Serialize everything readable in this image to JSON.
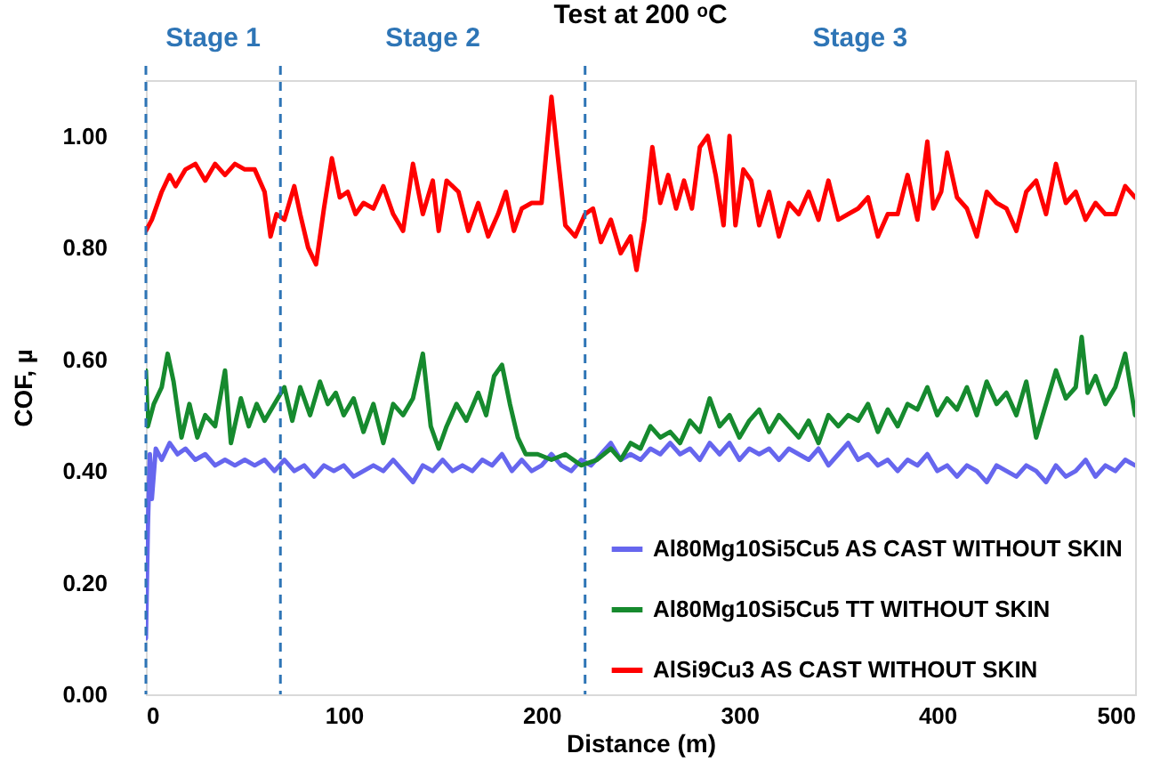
{
  "chart_data": {
    "type": "line",
    "title": "Test at 200 ᵒC",
    "xlabel": "Distance (m)",
    "ylabel": "COF, µ",
    "xlim": [
      0,
      500
    ],
    "xticks": [
      0,
      100,
      200,
      300,
      400,
      500
    ],
    "ylim": [
      0,
      1.1
    ],
    "yticks": [
      {
        "value": 0,
        "label": "0.00"
      },
      {
        "value": 0.2,
        "label": "0.20"
      },
      {
        "value": 0.4,
        "label": "0.40"
      },
      {
        "value": 0.6,
        "label": "0.60"
      },
      {
        "value": 0.8,
        "label": "0.80"
      },
      {
        "value": 1,
        "label": "1.00"
      }
    ],
    "grid": false,
    "legend": "bottom right",
    "line_style": "solid",
    "marker": "none",
    "annotations": [
      "Stage 1",
      "Stage 2",
      "Stage 3"
    ],
    "ref_lines": [
      {
        "axis": "x",
        "value": 0,
        "color": "#2e75b6",
        "line_style": "dashed"
      },
      {
        "axis": "x",
        "value": 68,
        "color": "#2e75b6",
        "line_style": "dashed"
      },
      {
        "axis": "x",
        "value": 222,
        "color": "#2e75b6",
        "line_style": "dashed"
      }
    ],
    "series": [
      {
        "name": "Al80Mg10Si5Cu5 AS CAST WITHOUT SKIN",
        "color": "#6666ee",
        "x": [
          0,
          1,
          2,
          3,
          5,
          8,
          12,
          16,
          20,
          25,
          30,
          35,
          40,
          45,
          50,
          55,
          60,
          65,
          70,
          75,
          80,
          85,
          90,
          95,
          100,
          105,
          110,
          115,
          120,
          125,
          130,
          135,
          140,
          145,
          150,
          155,
          160,
          165,
          170,
          175,
          180,
          185,
          190,
          195,
          200,
          205,
          210,
          215,
          220,
          225,
          230,
          235,
          240,
          245,
          250,
          255,
          260,
          265,
          270,
          275,
          280,
          285,
          290,
          295,
          300,
          305,
          310,
          315,
          320,
          325,
          330,
          335,
          340,
          345,
          350,
          355,
          360,
          365,
          370,
          375,
          380,
          385,
          390,
          395,
          400,
          405,
          410,
          415,
          420,
          425,
          430,
          435,
          440,
          445,
          450,
          455,
          460,
          465,
          470,
          475,
          480,
          485,
          490,
          495,
          500
        ],
        "values": [
          0.1,
          0.3,
          0.43,
          0.35,
          0.44,
          0.42,
          0.45,
          0.43,
          0.44,
          0.42,
          0.43,
          0.41,
          0.42,
          0.41,
          0.42,
          0.41,
          0.42,
          0.4,
          0.42,
          0.4,
          0.41,
          0.39,
          0.41,
          0.4,
          0.41,
          0.39,
          0.4,
          0.41,
          0.4,
          0.42,
          0.4,
          0.38,
          0.41,
          0.4,
          0.42,
          0.4,
          0.41,
          0.4,
          0.42,
          0.41,
          0.43,
          0.4,
          0.42,
          0.4,
          0.41,
          0.43,
          0.41,
          0.4,
          0.42,
          0.41,
          0.43,
          0.45,
          0.42,
          0.43,
          0.42,
          0.44,
          0.43,
          0.45,
          0.43,
          0.44,
          0.42,
          0.45,
          0.43,
          0.45,
          0.42,
          0.44,
          0.43,
          0.44,
          0.42,
          0.44,
          0.43,
          0.42,
          0.44,
          0.41,
          0.43,
          0.45,
          0.42,
          0.43,
          0.41,
          0.42,
          0.4,
          0.42,
          0.41,
          0.43,
          0.4,
          0.41,
          0.39,
          0.41,
          0.4,
          0.38,
          0.41,
          0.4,
          0.39,
          0.41,
          0.4,
          0.38,
          0.41,
          0.39,
          0.4,
          0.42,
          0.39,
          0.41,
          0.4,
          0.42,
          0.41
        ]
      },
      {
        "name": "Al80Mg10Si5Cu5 TT WITHOUT SKIN",
        "color": "#168a2e",
        "x": [
          0,
          1,
          4,
          8,
          11,
          14,
          18,
          22,
          26,
          30,
          35,
          40,
          43,
          48,
          52,
          56,
          60,
          65,
          70,
          74,
          78,
          83,
          88,
          92,
          96,
          100,
          105,
          110,
          115,
          120,
          125,
          130,
          135,
          140,
          144,
          148,
          152,
          157,
          162,
          168,
          172,
          176,
          180,
          184,
          188,
          192,
          198,
          205,
          212,
          220,
          228,
          235,
          240,
          245,
          250,
          255,
          260,
          265,
          270,
          275,
          280,
          285,
          290,
          295,
          300,
          305,
          310,
          315,
          320,
          325,
          330,
          335,
          340,
          345,
          350,
          355,
          360,
          365,
          370,
          375,
          380,
          385,
          390,
          395,
          400,
          405,
          410,
          415,
          420,
          425,
          430,
          435,
          440,
          445,
          450,
          455,
          460,
          465,
          470,
          473,
          476,
          480,
          485,
          490,
          495,
          500
        ],
        "values": [
          0.58,
          0.48,
          0.52,
          0.55,
          0.61,
          0.56,
          0.46,
          0.52,
          0.46,
          0.5,
          0.48,
          0.58,
          0.45,
          0.53,
          0.48,
          0.52,
          0.49,
          0.52,
          0.55,
          0.49,
          0.55,
          0.5,
          0.56,
          0.52,
          0.54,
          0.5,
          0.53,
          0.47,
          0.52,
          0.45,
          0.52,
          0.5,
          0.53,
          0.61,
          0.48,
          0.44,
          0.48,
          0.52,
          0.49,
          0.54,
          0.5,
          0.57,
          0.59,
          0.52,
          0.46,
          0.43,
          0.43,
          0.42,
          0.43,
          0.41,
          0.42,
          0.44,
          0.42,
          0.45,
          0.44,
          0.48,
          0.46,
          0.47,
          0.45,
          0.49,
          0.47,
          0.53,
          0.48,
          0.5,
          0.46,
          0.49,
          0.51,
          0.47,
          0.5,
          0.48,
          0.46,
          0.49,
          0.45,
          0.5,
          0.48,
          0.5,
          0.49,
          0.52,
          0.47,
          0.51,
          0.48,
          0.52,
          0.51,
          0.55,
          0.5,
          0.53,
          0.51,
          0.55,
          0.5,
          0.56,
          0.52,
          0.54,
          0.5,
          0.56,
          0.46,
          0.52,
          0.58,
          0.53,
          0.55,
          0.64,
          0.54,
          0.57,
          0.52,
          0.55,
          0.61,
          0.5
        ]
      },
      {
        "name": "AlSi9Cu3 AS CAST WITHOUT SKIN",
        "color": "#ff0000",
        "x": [
          0,
          3,
          8,
          12,
          15,
          20,
          25,
          30,
          35,
          40,
          45,
          50,
          55,
          60,
          63,
          66,
          70,
          75,
          78,
          82,
          86,
          90,
          94,
          98,
          102,
          106,
          110,
          115,
          120,
          125,
          130,
          135,
          140,
          145,
          148,
          152,
          158,
          163,
          168,
          173,
          178,
          182,
          186,
          190,
          195,
          200,
          205,
          208,
          212,
          217,
          222,
          226,
          230,
          235,
          240,
          245,
          248,
          252,
          256,
          260,
          264,
          268,
          272,
          276,
          280,
          284,
          288,
          292,
          295,
          298,
          302,
          306,
          310,
          315,
          320,
          325,
          330,
          335,
          340,
          345,
          350,
          355,
          360,
          365,
          370,
          375,
          380,
          385,
          390,
          395,
          398,
          402,
          405,
          410,
          415,
          420,
          425,
          430,
          435,
          440,
          445,
          450,
          455,
          460,
          465,
          470,
          475,
          480,
          485,
          490,
          495,
          500
        ],
        "values": [
          0.83,
          0.85,
          0.9,
          0.93,
          0.91,
          0.94,
          0.95,
          0.92,
          0.95,
          0.93,
          0.95,
          0.94,
          0.94,
          0.9,
          0.82,
          0.86,
          0.85,
          0.91,
          0.86,
          0.8,
          0.77,
          0.87,
          0.96,
          0.89,
          0.9,
          0.86,
          0.88,
          0.87,
          0.91,
          0.86,
          0.83,
          0.95,
          0.86,
          0.92,
          0.83,
          0.92,
          0.9,
          0.83,
          0.88,
          0.82,
          0.86,
          0.9,
          0.83,
          0.87,
          0.88,
          0.88,
          1.07,
          0.97,
          0.84,
          0.82,
          0.86,
          0.87,
          0.81,
          0.85,
          0.79,
          0.82,
          0.76,
          0.85,
          0.98,
          0.88,
          0.93,
          0.87,
          0.92,
          0.87,
          0.98,
          1.0,
          0.93,
          0.84,
          1.0,
          0.84,
          0.94,
          0.92,
          0.84,
          0.9,
          0.82,
          0.88,
          0.86,
          0.9,
          0.85,
          0.92,
          0.85,
          0.86,
          0.87,
          0.89,
          0.82,
          0.86,
          0.86,
          0.93,
          0.85,
          0.99,
          0.87,
          0.9,
          0.97,
          0.89,
          0.87,
          0.82,
          0.9,
          0.88,
          0.87,
          0.83,
          0.9,
          0.92,
          0.86,
          0.95,
          0.88,
          0.9,
          0.85,
          0.88,
          0.86,
          0.86,
          0.91,
          0.89
        ]
      }
    ]
  }
}
